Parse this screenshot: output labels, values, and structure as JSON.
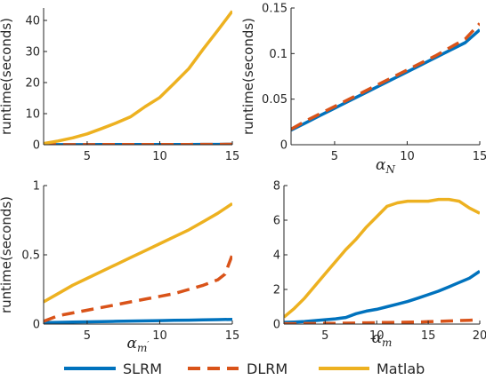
{
  "colors": {
    "SLRM": "#0072BD",
    "DLRM": "#D95319",
    "Matlab": "#EDB120",
    "axis": "#262626"
  },
  "legend": {
    "placement": "bottom",
    "entries": [
      {
        "name": "SLRM",
        "style": "solid"
      },
      {
        "name": "DLRM",
        "style": "dashed"
      },
      {
        "name": "Matlab",
        "style": "solid"
      }
    ]
  },
  "chart_data": [
    {
      "type": "line",
      "xlabel": "",
      "ylabel": "runtime(seconds)",
      "xlim": [
        2,
        15
      ],
      "ylim": [
        0,
        44
      ],
      "xticks": [
        5,
        10,
        15
      ],
      "yticks": [
        0,
        10,
        20,
        30,
        40
      ],
      "ytick_labels": [
        "0",
        "10",
        "20",
        "30",
        "40"
      ],
      "series": [
        {
          "name": "SLRM",
          "x": [
            2,
            3,
            4,
            5,
            6,
            7,
            8,
            9,
            10,
            11,
            12,
            13,
            14,
            15
          ],
          "y": [
            0.02,
            0.03,
            0.03,
            0.04,
            0.05,
            0.05,
            0.06,
            0.07,
            0.08,
            0.09,
            0.1,
            0.11,
            0.12,
            0.13
          ]
        },
        {
          "name": "DLRM",
          "x": [
            2,
            3,
            4,
            5,
            6,
            7,
            8,
            9,
            10,
            11,
            12,
            13,
            14,
            15
          ],
          "y": [
            0.02,
            0.03,
            0.03,
            0.04,
            0.05,
            0.05,
            0.06,
            0.07,
            0.08,
            0.09,
            0.1,
            0.11,
            0.12,
            0.14
          ]
        },
        {
          "name": "Matlab",
          "x": [
            2,
            3,
            4,
            5,
            6,
            7,
            8,
            9,
            10,
            11,
            12,
            13,
            14,
            15
          ],
          "y": [
            0.4,
            1.2,
            2.2,
            3.5,
            5.2,
            7.0,
            9.0,
            12.3,
            15.2,
            19.8,
            24.5,
            30.8,
            36.8,
            43.0
          ]
        }
      ]
    },
    {
      "type": "line",
      "xlabel": "α_N",
      "ylabel": "runtime(seconds)",
      "xlim": [
        2,
        15
      ],
      "ylim": [
        0,
        0.15
      ],
      "xticks": [
        5,
        10,
        15
      ],
      "yticks": [
        0,
        0.05,
        0.1,
        0.15
      ],
      "ytick_labels": [
        "0",
        "0.05",
        "0.1",
        "0.15"
      ],
      "series": [
        {
          "name": "SLRM",
          "x": [
            2,
            3,
            4,
            5,
            6,
            7,
            8,
            9,
            10,
            11,
            12,
            13,
            14,
            15
          ],
          "y": [
            0.016,
            0.024,
            0.032,
            0.04,
            0.048,
            0.056,
            0.064,
            0.072,
            0.08,
            0.088,
            0.096,
            0.104,
            0.112,
            0.126
          ]
        },
        {
          "name": "DLRM",
          "x": [
            2,
            3,
            4,
            5,
            6,
            7,
            8,
            9,
            10,
            11,
            12,
            13,
            14,
            15
          ],
          "y": [
            0.017,
            0.026,
            0.034,
            0.042,
            0.05,
            0.058,
            0.066,
            0.074,
            0.082,
            0.09,
            0.098,
            0.107,
            0.116,
            0.133
          ]
        },
        {
          "name": "Matlab",
          "x": [],
          "y": []
        }
      ]
    },
    {
      "type": "line",
      "xlabel": "α_m'",
      "ylabel": "runtime(seconds)",
      "xlim": [
        2,
        15
      ],
      "ylim": [
        0,
        1
      ],
      "xticks": [
        5,
        10,
        15
      ],
      "yticks": [
        0,
        0.5,
        1
      ],
      "ytick_labels": [
        "0",
        "0.5",
        "1"
      ],
      "series": [
        {
          "name": "SLRM",
          "x": [
            2,
            3,
            4,
            5,
            6,
            7,
            8,
            9,
            10,
            11,
            12,
            13,
            14,
            15
          ],
          "y": [
            0.01,
            0.012,
            0.014,
            0.016,
            0.018,
            0.02,
            0.022,
            0.023,
            0.025,
            0.027,
            0.028,
            0.03,
            0.032,
            0.034
          ]
        },
        {
          "name": "DLRM",
          "x": [
            2,
            3,
            4,
            5,
            6,
            7,
            8,
            9,
            10,
            11,
            12,
            13,
            14,
            14.5,
            15
          ],
          "y": [
            0.02,
            0.06,
            0.08,
            0.1,
            0.12,
            0.14,
            0.16,
            0.18,
            0.2,
            0.22,
            0.25,
            0.28,
            0.32,
            0.36,
            0.5
          ]
        },
        {
          "name": "Matlab",
          "x": [
            2,
            3,
            4,
            5,
            6,
            7,
            8,
            9,
            10,
            11,
            12,
            13,
            14,
            15
          ],
          "y": [
            0.16,
            0.22,
            0.28,
            0.33,
            0.38,
            0.43,
            0.48,
            0.53,
            0.58,
            0.63,
            0.68,
            0.74,
            0.8,
            0.87
          ]
        }
      ]
    },
    {
      "type": "line",
      "xlabel": "α_m",
      "ylabel": "",
      "xlim": [
        1,
        20
      ],
      "ylim": [
        0,
        8
      ],
      "xticks": [
        5,
        10,
        15,
        20
      ],
      "yticks": [
        0,
        2,
        4,
        6,
        8
      ],
      "ytick_labels": [
        "0",
        "2",
        "4",
        "6",
        "8"
      ],
      "series": [
        {
          "name": "SLRM",
          "x": [
            1,
            2,
            3,
            4,
            5,
            6,
            7,
            8,
            9,
            10,
            11,
            12,
            13,
            14,
            15,
            16,
            17,
            18,
            19,
            20
          ],
          "y": [
            0.1,
            0.12,
            0.15,
            0.2,
            0.25,
            0.3,
            0.38,
            0.6,
            0.75,
            0.85,
            1.0,
            1.15,
            1.3,
            1.5,
            1.7,
            1.9,
            2.15,
            2.4,
            2.65,
            3.05
          ]
        },
        {
          "name": "DLRM",
          "x": [
            1,
            2,
            3,
            4,
            5,
            6,
            7,
            8,
            9,
            10,
            11,
            12,
            13,
            14,
            15,
            16,
            17,
            18,
            19,
            20
          ],
          "y": [
            0.02,
            0.02,
            0.03,
            0.03,
            0.04,
            0.04,
            0.05,
            0.06,
            0.07,
            0.08,
            0.09,
            0.1,
            0.11,
            0.12,
            0.14,
            0.16,
            0.18,
            0.2,
            0.22,
            0.25
          ]
        },
        {
          "name": "Matlab",
          "x": [
            1,
            2,
            3,
            4,
            5,
            6,
            7,
            8,
            9,
            10,
            11,
            12,
            13,
            14,
            15,
            16,
            17,
            18,
            19,
            20
          ],
          "y": [
            0.4,
            0.9,
            1.5,
            2.2,
            2.9,
            3.6,
            4.3,
            4.9,
            5.6,
            6.2,
            6.8,
            7.0,
            7.1,
            7.1,
            7.1,
            7.2,
            7.2,
            7.1,
            6.7,
            6.4
          ]
        }
      ]
    }
  ]
}
